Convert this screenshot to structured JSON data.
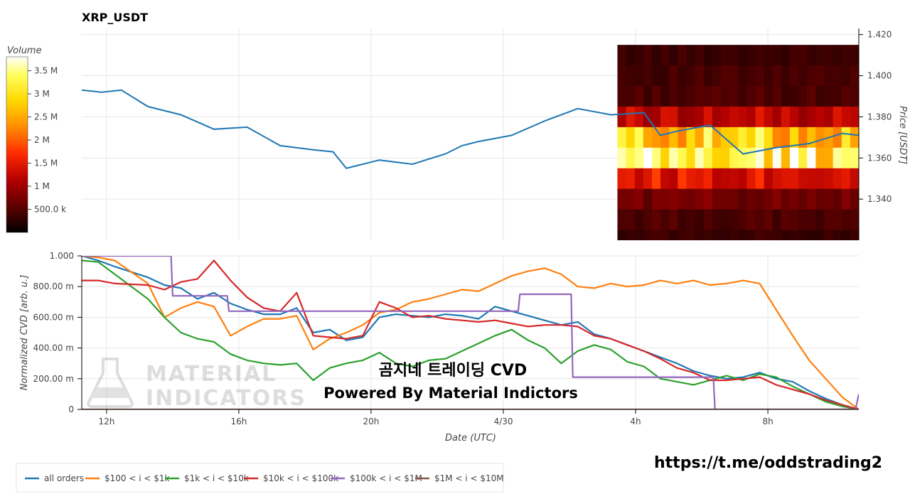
{
  "title": "XRP_USDT",
  "colorbar": {
    "title": "Volume",
    "ticks": [
      "3.5 M",
      "3 M",
      "2.5 M",
      "2 M",
      "1.5 M",
      "1 M",
      "500.0 k"
    ],
    "tick_values": [
      3500000,
      3000000,
      2500000,
      2000000,
      1500000,
      1000000,
      500000
    ],
    "range": [
      0,
      3800000
    ],
    "colors": [
      "#000000",
      "#5a0000",
      "#b40000",
      "#ff2a00",
      "#ff8c00",
      "#ffd800",
      "#ffff60",
      "#ffffff"
    ]
  },
  "watermark": {
    "line1": "MATERIAL",
    "line2": "INDICATORS"
  },
  "overlay": {
    "line1": "곰지네 트레이딩 CVD",
    "line2": "Powered By Material Indictors"
  },
  "link": "https://t.me/oddstrading2",
  "chart_data": [
    {
      "type": "line",
      "title": "XRP_USDT",
      "ylabel": "Price [USDT]",
      "ylim": [
        1.32,
        1.423
      ],
      "yticks": [
        "1.340",
        "1.360",
        "1.380",
        "1.400",
        "1.420"
      ],
      "ytick_values": [
        1.34,
        1.36,
        1.38,
        1.4,
        1.42
      ],
      "x_hours": [
        0,
        0.6,
        1.2,
        2,
        3,
        4,
        5,
        6,
        7,
        7.6,
        8,
        9,
        10,
        11,
        11.5,
        12,
        13,
        14,
        15,
        16,
        17,
        17.5,
        18,
        19,
        20,
        21,
        22,
        23,
        23.5
      ],
      "series": [
        {
          "values": [
            1.393,
            1.392,
            1.393,
            1.385,
            1.381,
            1.374,
            1.375,
            1.366,
            1.364,
            1.363,
            1.355,
            1.359,
            1.357,
            1.362,
            1.366,
            1.368,
            1.371,
            1.378,
            1.384,
            1.381,
            1.382,
            1.371,
            1.373,
            1.376,
            1.362,
            1.365,
            1.367,
            1.372,
            1.371
          ]
        }
      ],
      "heatmap": {
        "x_start_hour": 16.2,
        "x_end_hour": 23.5,
        "price_rows": [
          1.42,
          1.41,
          1.4,
          1.39,
          1.38,
          1.37,
          1.36,
          1.35,
          1.34,
          1.33,
          1.32
        ],
        "row_volume_m": [
          0.35,
          0.4,
          0.45,
          1.2,
          2.8,
          3.2,
          1.5,
          0.7,
          0.45,
          0.35,
          0.3
        ]
      }
    },
    {
      "type": "line",
      "xlabel": "Date (UTC)",
      "ylabel": "Normalized CVD [arb. u.]",
      "ylim": [
        0,
        1
      ],
      "yticks": [
        "0",
        "200.00 m",
        "400.00 m",
        "600.00 m",
        "800.00 m",
        "1.000"
      ],
      "ytick_values": [
        0,
        0.2,
        0.4,
        0.6,
        0.8,
        1.0
      ],
      "xticks": [
        "12h",
        "16h",
        "20h",
        "4/30",
        "4h",
        "8h"
      ],
      "xtick_hours": [
        0.75,
        4.75,
        8.75,
        12.75,
        16.75,
        20.75
      ],
      "xlim_hours": [
        0,
        23.5
      ],
      "series": [
        {
          "name": "all orders",
          "color": "#1f77b4",
          "x": [
            0,
            0.5,
            1,
            2,
            2.5,
            3,
            3.5,
            4,
            4.5,
            5,
            5.5,
            6,
            6.5,
            7,
            7.5,
            8,
            8.5,
            9,
            9.5,
            10,
            10.5,
            11,
            11.5,
            12,
            12.5,
            13,
            13.5,
            14,
            14.5,
            15,
            15.5,
            16,
            16.5,
            17,
            17.5,
            18,
            18.5,
            19,
            19.5,
            20,
            20.5,
            21,
            21.5,
            22,
            22.5,
            23,
            23.5
          ],
          "values": [
            1.0,
            0.97,
            0.93,
            0.86,
            0.81,
            0.79,
            0.72,
            0.76,
            0.69,
            0.65,
            0.62,
            0.62,
            0.66,
            0.5,
            0.52,
            0.45,
            0.47,
            0.6,
            0.62,
            0.61,
            0.6,
            0.62,
            0.61,
            0.59,
            0.67,
            0.64,
            0.61,
            0.58,
            0.55,
            0.57,
            0.49,
            0.46,
            0.42,
            0.38,
            0.34,
            0.3,
            0.25,
            0.22,
            0.2,
            0.21,
            0.24,
            0.2,
            0.18,
            0.12,
            0.07,
            0.03,
            0.0
          ]
        },
        {
          "name": "$100 < i < $1k",
          "color": "#ff7f0e",
          "x": [
            0,
            0.5,
            1,
            2,
            2.5,
            3,
            3.5,
            4,
            4.5,
            5,
            5.5,
            6,
            6.5,
            7,
            7.5,
            8,
            8.5,
            9,
            9.5,
            10,
            10.5,
            11,
            11.5,
            12,
            12.5,
            13,
            13.5,
            14,
            14.5,
            15,
            15.5,
            16,
            16.5,
            17,
            17.5,
            18,
            18.5,
            19,
            19.5,
            20,
            20.5,
            21,
            21.5,
            22,
            22.5,
            23,
            23.5
          ],
          "values": [
            1.0,
            0.99,
            0.97,
            0.82,
            0.6,
            0.66,
            0.7,
            0.67,
            0.48,
            0.54,
            0.59,
            0.59,
            0.61,
            0.39,
            0.46,
            0.5,
            0.55,
            0.63,
            0.65,
            0.7,
            0.72,
            0.75,
            0.78,
            0.77,
            0.82,
            0.87,
            0.9,
            0.92,
            0.88,
            0.8,
            0.79,
            0.82,
            0.8,
            0.81,
            0.84,
            0.82,
            0.84,
            0.81,
            0.82,
            0.84,
            0.82,
            0.65,
            0.48,
            0.32,
            0.2,
            0.08,
            0.0
          ]
        },
        {
          "name": "$1k < i < $10k",
          "color": "#2ca02c",
          "x": [
            0,
            0.5,
            1,
            2,
            2.5,
            3,
            3.5,
            4,
            4.5,
            5,
            5.5,
            6,
            6.5,
            7,
            7.5,
            8,
            8.5,
            9,
            9.5,
            10,
            10.5,
            11,
            11.5,
            12,
            12.5,
            13,
            13.5,
            14,
            14.5,
            15,
            15.5,
            16,
            16.5,
            17,
            17.5,
            18,
            18.5,
            19,
            19.5,
            20,
            20.5,
            21,
            21.5,
            22,
            22.5,
            23,
            23.5
          ],
          "values": [
            0.97,
            0.96,
            0.88,
            0.72,
            0.6,
            0.5,
            0.46,
            0.44,
            0.36,
            0.32,
            0.3,
            0.29,
            0.3,
            0.19,
            0.27,
            0.3,
            0.32,
            0.37,
            0.3,
            0.28,
            0.32,
            0.33,
            0.38,
            0.43,
            0.48,
            0.52,
            0.45,
            0.4,
            0.3,
            0.38,
            0.42,
            0.39,
            0.31,
            0.28,
            0.2,
            0.18,
            0.16,
            0.19,
            0.22,
            0.19,
            0.23,
            0.21,
            0.15,
            0.1,
            0.05,
            0.02,
            0.0
          ]
        },
        {
          "name": "$10k < i < $100k",
          "color": "#d62728",
          "x": [
            0,
            0.5,
            1,
            2,
            2.5,
            3,
            3.5,
            4,
            4.5,
            5,
            5.5,
            6,
            6.5,
            7,
            7.5,
            8,
            8.5,
            9,
            9.5,
            10,
            10.5,
            11,
            11.5,
            12,
            12.5,
            13,
            13.5,
            14,
            14.5,
            15,
            15.5,
            16,
            16.5,
            17,
            17.5,
            18,
            18.5,
            19,
            19.5,
            20,
            20.5,
            21,
            21.5,
            22,
            22.5,
            23,
            23.5
          ],
          "values": [
            0.84,
            0.84,
            0.82,
            0.81,
            0.78,
            0.83,
            0.85,
            0.97,
            0.84,
            0.73,
            0.66,
            0.64,
            0.76,
            0.48,
            0.47,
            0.46,
            0.48,
            0.7,
            0.66,
            0.6,
            0.61,
            0.59,
            0.58,
            0.57,
            0.58,
            0.56,
            0.54,
            0.55,
            0.55,
            0.54,
            0.48,
            0.46,
            0.42,
            0.38,
            0.33,
            0.27,
            0.24,
            0.19,
            0.19,
            0.2,
            0.21,
            0.16,
            0.13,
            0.1,
            0.06,
            0.03,
            0.0
          ]
        },
        {
          "name": "$100k < i < $1M",
          "color": "#9467bd",
          "x": [
            0,
            2.7,
            2.75,
            4.4,
            4.45,
            6,
            6.5,
            13.2,
            13.25,
            14.8,
            14.85,
            16.5,
            18,
            19.1,
            19.15,
            23.4,
            23.5
          ],
          "values": [
            1.0,
            1.0,
            0.74,
            0.74,
            0.64,
            0.64,
            0.64,
            0.64,
            0.75,
            0.75,
            0.21,
            0.21,
            0.21,
            0.21,
            0.0,
            0.0,
            0.1
          ]
        },
        {
          "name": "$1M < i < $10M",
          "color": "#8c564b",
          "x": [
            0,
            23.5
          ],
          "values": [
            0.0,
            0.0
          ]
        }
      ]
    }
  ]
}
